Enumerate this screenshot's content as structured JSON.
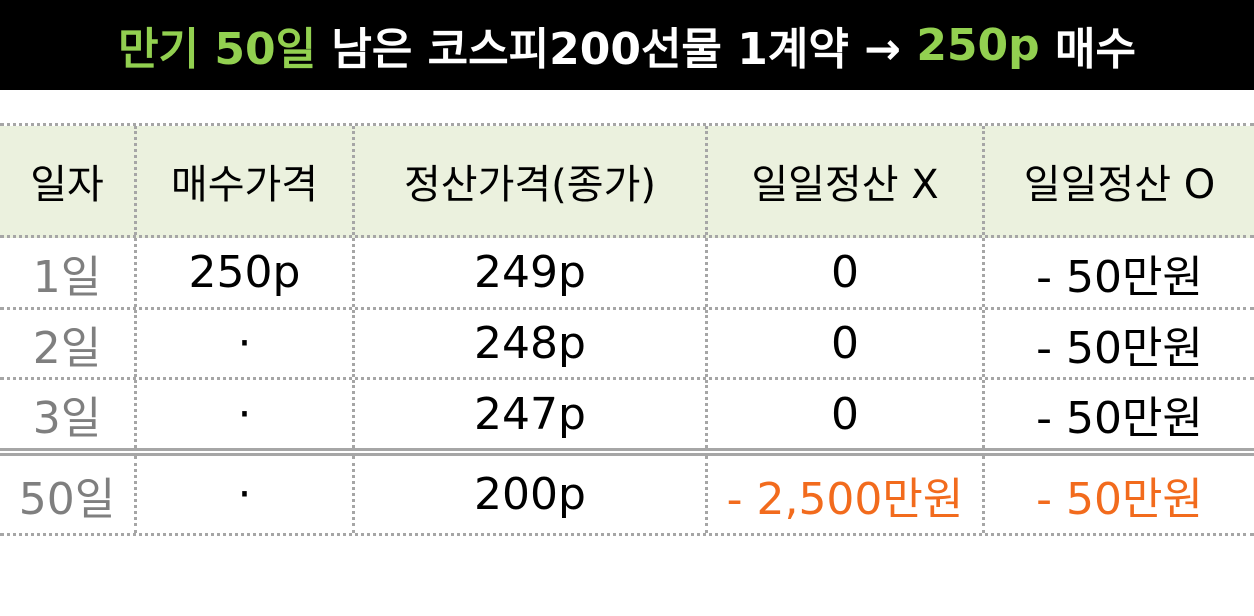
{
  "title": {
    "maturity": "만기 50일",
    "middle": " 남은 코스피200선물 1계약 → ",
    "price": "250p",
    "action": " 매수"
  },
  "colors": {
    "title_accent": "#92d050",
    "title_text": "#ffffff",
    "banner_bg": "#000000",
    "header_bg": "#ebf1de",
    "day_text": "#7f7f7f",
    "loss_highlight": "#f26b1d",
    "border": "#a6a6a6"
  },
  "table": {
    "headers": [
      "일자",
      "매수가격",
      "정산가격(종가)",
      "일일정산 X",
      "일일정산 O"
    ],
    "rows": [
      {
        "day": "1일",
        "buy_price": "250p",
        "settlement_price": "249p",
        "no_daily_settlement": "0",
        "daily_settlement": "- 50만원"
      },
      {
        "day": "2일",
        "buy_price": "·",
        "settlement_price": "248p",
        "no_daily_settlement": "0",
        "daily_settlement": "- 50만원"
      },
      {
        "day": "3일",
        "buy_price": "·",
        "settlement_price": "247p",
        "no_daily_settlement": "0",
        "daily_settlement": "- 50만원"
      },
      {
        "day": "50일",
        "buy_price": "·",
        "settlement_price": "200p",
        "no_daily_settlement": "- 2,500만원",
        "daily_settlement": "- 50만원"
      }
    ]
  }
}
